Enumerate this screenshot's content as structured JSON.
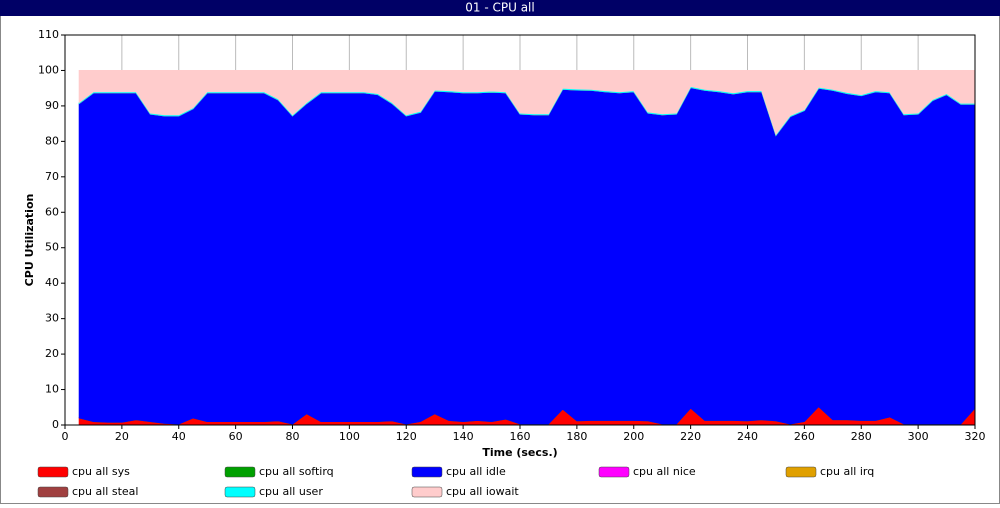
{
  "chart_data": {
    "type": "stacked_area",
    "title": "01 - CPU all",
    "xlabel": "Time (secs.)",
    "ylabel": "CPU Utilization",
    "x": [
      5,
      10,
      15,
      20,
      25,
      30,
      35,
      40,
      45,
      50,
      55,
      60,
      65,
      70,
      75,
      80,
      85,
      90,
      95,
      100,
      105,
      110,
      115,
      120,
      125,
      130,
      135,
      140,
      145,
      150,
      155,
      160,
      165,
      170,
      175,
      180,
      185,
      190,
      195,
      200,
      205,
      210,
      215,
      220,
      225,
      230,
      235,
      240,
      245,
      250,
      255,
      260,
      265,
      270,
      275,
      280,
      285,
      290,
      295,
      300,
      305,
      310,
      315,
      320
    ],
    "series": [
      {
        "name": "cpu all sys",
        "color": "#ff0000",
        "values": [
          2,
          1,
          0.8,
          0.8,
          1.5,
          1,
          0.5,
          0.3,
          2,
          1,
          1,
          1,
          1,
          1,
          1.2,
          0.3,
          3.2,
          1,
          1,
          1,
          1,
          1,
          1.2,
          0.3,
          1,
          3.2,
          1.3,
          1,
          1.3,
          1,
          1.7,
          0.3,
          0.3,
          0.3,
          4.5,
          1.2,
          1.3,
          1.3,
          1.3,
          1.3,
          1.2,
          0.3,
          0.3,
          4.8,
          1.3,
          1.3,
          1.3,
          1.2,
          1.5,
          1.2,
          0.3,
          1,
          5.2,
          1.5,
          1.5,
          1.3,
          1.3,
          2.3,
          0.3,
          0.3,
          0.3,
          0.3,
          0.3,
          4.8
        ]
      },
      {
        "name": "cpu all softirq",
        "color": "#00a000",
        "values": [
          0,
          0,
          0,
          0,
          0,
          0,
          0,
          0,
          0,
          0,
          0,
          0,
          0,
          0,
          0,
          0,
          0,
          0,
          0,
          0,
          0,
          0,
          0,
          0,
          0,
          0,
          0,
          0,
          0,
          0,
          0,
          0,
          0,
          0,
          0,
          0,
          0,
          0,
          0,
          0,
          0,
          0,
          0,
          0,
          0,
          0,
          0,
          0,
          0,
          0,
          0,
          0,
          0,
          0,
          0,
          0,
          0,
          0,
          0,
          0,
          0,
          0,
          0,
          0
        ]
      },
      {
        "name": "cpu all idle",
        "color": "#0000ff",
        "values": [
          88.7,
          92.7,
          92.9,
          92.9,
          92.2,
          86.7,
          86.7,
          86.9,
          87.2,
          92.7,
          92.7,
          92.7,
          92.7,
          92.7,
          90.5,
          86.9,
          87.5,
          92.7,
          92.7,
          92.7,
          92.7,
          92.2,
          89.5,
          86.9,
          87.2,
          91,
          92.7,
          92.7,
          92.4,
          92.9,
          92,
          87.4,
          87.2,
          87.2,
          90.2,
          93.3,
          93.1,
          92.7,
          92.4,
          92.7,
          86.8,
          87.2,
          87.4,
          90.4,
          93.1,
          92.7,
          92.1,
          92.8,
          92.5,
          80.5,
          86.7,
          87.7,
          89.8,
          92.9,
          92,
          91.6,
          92.7,
          91.4,
          87.2,
          87.4,
          91.2,
          92.9,
          90.2,
          85.7
        ]
      },
      {
        "name": "cpu all nice",
        "color": "#ff00ff",
        "values": [
          0,
          0,
          0,
          0,
          0,
          0,
          0,
          0,
          0,
          0,
          0,
          0,
          0,
          0,
          0,
          0,
          0,
          0,
          0,
          0,
          0,
          0,
          0,
          0,
          0,
          0,
          0,
          0,
          0,
          0,
          0,
          0,
          0,
          0,
          0,
          0,
          0,
          0,
          0,
          0,
          0,
          0,
          0,
          0,
          0,
          0,
          0,
          0,
          0,
          0,
          0,
          0,
          0,
          0,
          0,
          0,
          0,
          0,
          0,
          0,
          0,
          0,
          0,
          0
        ]
      },
      {
        "name": "cpu all irq",
        "color": "#e0a000",
        "values": [
          0,
          0,
          0,
          0,
          0,
          0,
          0,
          0,
          0,
          0,
          0,
          0,
          0,
          0,
          0,
          0,
          0,
          0,
          0,
          0,
          0,
          0,
          0,
          0,
          0,
          0,
          0,
          0,
          0,
          0,
          0,
          0,
          0,
          0,
          0,
          0,
          0,
          0,
          0,
          0,
          0,
          0,
          0,
          0,
          0,
          0,
          0,
          0,
          0,
          0,
          0,
          0,
          0,
          0,
          0,
          0,
          0,
          0,
          0,
          0,
          0,
          0,
          0,
          0
        ]
      },
      {
        "name": "cpu all steal",
        "color": "#a04040",
        "values": [
          0,
          0,
          0,
          0,
          0,
          0,
          0,
          0,
          0,
          0,
          0,
          0,
          0,
          0,
          0,
          0,
          0,
          0,
          0,
          0,
          0,
          0,
          0,
          0,
          0,
          0,
          0,
          0,
          0,
          0,
          0,
          0,
          0,
          0,
          0,
          0,
          0,
          0,
          0,
          0,
          0,
          0,
          0,
          0,
          0,
          0,
          0,
          0,
          0,
          0,
          0,
          0,
          0,
          0,
          0,
          0,
          0,
          0,
          0,
          0,
          0,
          0,
          0,
          0
        ]
      },
      {
        "name": "cpu all user",
        "color": "#00ffff",
        "values": [
          0.3,
          0.3,
          0.3,
          0.3,
          0.3,
          0.3,
          0.3,
          0.3,
          0.3,
          0.3,
          0.3,
          0.3,
          0.3,
          0.3,
          0.3,
          0.3,
          0.3,
          0.3,
          0.3,
          0.3,
          0.3,
          0.3,
          0.3,
          0.3,
          0.3,
          0.3,
          0.3,
          0.3,
          0.3,
          0.3,
          0.3,
          0.3,
          0.3,
          0.3,
          0.3,
          0.3,
          0.3,
          0.3,
          0.3,
          0.3,
          0.3,
          0.3,
          0.3,
          0.3,
          0.3,
          0.3,
          0.3,
          0.3,
          0.3,
          0.3,
          0.3,
          0.3,
          0.3,
          0.3,
          0.3,
          0.3,
          0.3,
          0.3,
          0.3,
          0.3,
          0.3,
          0.3,
          0.3,
          0.3
        ]
      },
      {
        "name": "cpu all iowait",
        "color": "#ffcccc",
        "values": [
          9,
          6,
          6,
          6,
          6,
          12,
          12.5,
          12.5,
          10.5,
          6,
          6,
          6,
          6,
          6,
          8,
          12.5,
          9,
          6,
          6,
          6,
          6,
          6.5,
          9,
          12.5,
          11.5,
          5.5,
          5.7,
          6,
          6,
          5.8,
          6,
          12,
          12.2,
          12.2,
          5,
          5.2,
          5.3,
          5.7,
          6,
          5.7,
          11.7,
          12.2,
          12,
          4.5,
          5.3,
          5.7,
          6.3,
          5.7,
          5.7,
          18,
          12.7,
          11,
          4.7,
          5.3,
          6.2,
          6.8,
          5.7,
          6,
          12.2,
          12,
          8.2,
          6.5,
          9.2,
          9.2
        ]
      }
    ],
    "xlim": [
      0,
      320
    ],
    "xticks": [
      0,
      20,
      40,
      60,
      80,
      100,
      120,
      140,
      160,
      180,
      200,
      220,
      240,
      260,
      280,
      300,
      320
    ],
    "ylim": [
      0,
      110
    ],
    "yticks": [
      0,
      10,
      20,
      30,
      40,
      50,
      60,
      70,
      80,
      90,
      100,
      110
    ],
    "grid": "x"
  }
}
